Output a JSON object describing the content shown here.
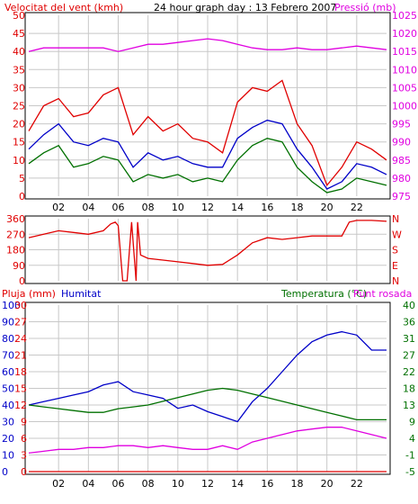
{
  "header": {
    "left_label": "Velocitat del vent (kmh)",
    "center_label": "24 hour graph day : 13 Febrero 2007",
    "right_label": "Pressió (mb)"
  },
  "colors": {
    "red": "#e00000",
    "blue": "#0000c8",
    "green": "#007000",
    "magenta": "#e000e0",
    "grid": "#c8c8c8",
    "border": "#000000"
  },
  "chart_data": [
    {
      "name": "wind-pressure",
      "type": "line",
      "x_ticks": [
        "02",
        "04",
        "06",
        "08",
        "10",
        "12",
        "14",
        "16",
        "18",
        "20",
        "22"
      ],
      "xlim": [
        0,
        24
      ],
      "ylim_left": [
        0,
        50
      ],
      "y_ticks_left": [
        "0",
        "5",
        "10",
        "15",
        "20",
        "25",
        "30",
        "35",
        "40",
        "45",
        "50"
      ],
      "ylabel_left": "Velocitat del vent (kmh)",
      "ylim_right": [
        975,
        1025
      ],
      "y_ticks_right": [
        "975",
        "980",
        "985",
        "990",
        "995",
        "1000",
        "1005",
        "1010",
        "1015",
        "1020",
        "1025"
      ],
      "ylabel_right": "Pressió (mb)",
      "series": [
        {
          "name": "Pressió (mb)",
          "color": "#e000e0",
          "axis": "right",
          "x": [
            0,
            1,
            2,
            3,
            4,
            5,
            6,
            7,
            8,
            9,
            10,
            11,
            12,
            13,
            14,
            15,
            16,
            17,
            18,
            19,
            20,
            21,
            22,
            23,
            24
          ],
          "y": [
            1015,
            1016,
            1016,
            1016,
            1016,
            1016,
            1015,
            1016,
            1017,
            1017,
            1017.5,
            1018,
            1018.5,
            1018,
            1017,
            1016,
            1015.5,
            1015.5,
            1016,
            1015.5,
            1015.5,
            1016,
            1016.5,
            1016,
            1015.5
          ]
        },
        {
          "name": "wind-gust",
          "color": "#e00000",
          "axis": "left",
          "x": [
            0,
            1,
            2,
            3,
            4,
            5,
            6,
            7,
            8,
            9,
            10,
            11,
            12,
            13,
            14,
            15,
            16,
            17,
            18,
            19,
            20,
            21,
            22,
            23,
            24
          ],
          "y": [
            18,
            25,
            27,
            22,
            23,
            28,
            30,
            17,
            22,
            18,
            20,
            16,
            15,
            12,
            26,
            30,
            29,
            32,
            20,
            14,
            3,
            8,
            15,
            13,
            10
          ]
        },
        {
          "name": "wind-average",
          "color": "#0000c8",
          "axis": "left",
          "x": [
            0,
            1,
            2,
            3,
            4,
            5,
            6,
            7,
            8,
            9,
            10,
            11,
            12,
            13,
            14,
            15,
            16,
            17,
            18,
            19,
            20,
            21,
            22,
            23,
            24
          ],
          "y": [
            13,
            17,
            20,
            15,
            14,
            16,
            15,
            8,
            12,
            10,
            11,
            9,
            8,
            8,
            16,
            19,
            21,
            20,
            13,
            8,
            2,
            4,
            9,
            8,
            6
          ]
        },
        {
          "name": "wind-low",
          "color": "#007000",
          "axis": "left",
          "x": [
            0,
            1,
            2,
            3,
            4,
            5,
            6,
            7,
            8,
            9,
            10,
            11,
            12,
            13,
            14,
            15,
            16,
            17,
            18,
            19,
            20,
            21,
            22,
            23,
            24
          ],
          "y": [
            9,
            12,
            14,
            8,
            9,
            11,
            10,
            4,
            6,
            5,
            6,
            4,
            5,
            4,
            10,
            14,
            16,
            15,
            8,
            4,
            1,
            2,
            5,
            4,
            3
          ]
        }
      ]
    },
    {
      "name": "wind-direction",
      "type": "line",
      "x_ticks": [
        "02",
        "04",
        "06",
        "08",
        "10",
        "12",
        "14",
        "16",
        "18",
        "20",
        "22"
      ],
      "xlim": [
        0,
        24
      ],
      "ylim_left": [
        0,
        360
      ],
      "y_ticks_left": [
        "0",
        "90",
        "180",
        "270",
        "360"
      ],
      "y_ticks_right": [
        "N",
        "E",
        "S",
        "W",
        "N"
      ],
      "series": [
        {
          "name": "direction",
          "color": "#e00000",
          "axis": "left",
          "x": [
            0,
            1,
            2,
            3,
            4,
            5,
            5.5,
            5.8,
            6.0,
            6.3,
            6.6,
            6.9,
            7.2,
            7.3,
            7.5,
            8,
            9,
            10,
            11,
            12,
            13,
            14,
            15,
            16,
            17,
            18,
            19,
            20,
            21,
            21.5,
            22,
            23,
            24
          ],
          "y": [
            250,
            270,
            290,
            280,
            270,
            290,
            330,
            340,
            320,
            0,
            0,
            340,
            0,
            340,
            150,
            130,
            120,
            110,
            100,
            90,
            95,
            150,
            220,
            250,
            240,
            250,
            260,
            260,
            260,
            340,
            350,
            350,
            345
          ]
        }
      ]
    },
    {
      "name": "rain-humidity-temperature",
      "type": "line",
      "x_ticks": [
        "02",
        "04",
        "06",
        "08",
        "10",
        "12",
        "14",
        "16",
        "18",
        "20",
        "22"
      ],
      "xlim": [
        0,
        24
      ],
      "ylabel_rain": "Pluja (mm)",
      "ylabel_humidity": "Humitat",
      "ylabel_temperature": "Temperatura (°C)",
      "ylabel_dewpoint": "Punt rosada",
      "y_ticks_humidity": [
        "0",
        "10",
        "20",
        "30",
        "40",
        "50",
        "60",
        "70",
        "80",
        "90",
        "100"
      ],
      "y_ticks_rain": [
        "0",
        "3",
        "6",
        "9",
        "12",
        "15",
        "18",
        "21",
        "24",
        "27",
        "30"
      ],
      "y_ticks_temp": [
        "-5",
        "-1",
        "4",
        "9",
        "13",
        "18",
        "22",
        "27",
        "31",
        "36",
        "40"
      ],
      "ylim_humidity": [
        0,
        100
      ],
      "ylim_temp": [
        -5,
        40
      ],
      "series": [
        {
          "name": "Humitat",
          "color": "#0000c8",
          "axis": "humidity",
          "x": [
            0,
            1,
            2,
            3,
            4,
            5,
            6,
            7,
            8,
            9,
            10,
            11,
            12,
            13,
            14,
            15,
            16,
            17,
            18,
            19,
            20,
            21,
            22,
            23,
            24
          ],
          "y": [
            40,
            42,
            44,
            46,
            48,
            52,
            54,
            48,
            46,
            44,
            38,
            40,
            36,
            33,
            30,
            42,
            50,
            60,
            70,
            78,
            82,
            84,
            82,
            73,
            73
          ]
        },
        {
          "name": "Temperatura (°C)",
          "color": "#007000",
          "axis": "temp",
          "x": [
            0,
            1,
            2,
            3,
            4,
            5,
            6,
            7,
            8,
            9,
            10,
            11,
            12,
            13,
            14,
            15,
            16,
            17,
            18,
            19,
            20,
            21,
            22,
            23,
            24
          ],
          "y": [
            13,
            12.5,
            12,
            11.5,
            11,
            11,
            12,
            12.5,
            13,
            14,
            15,
            16,
            17,
            17.5,
            17,
            16,
            15,
            14,
            13,
            12,
            11,
            10,
            9,
            9,
            9
          ]
        },
        {
          "name": "Punt rosada",
          "color": "#e000e0",
          "axis": "temp",
          "x": [
            0,
            1,
            2,
            3,
            4,
            5,
            6,
            7,
            8,
            9,
            10,
            11,
            12,
            13,
            14,
            15,
            16,
            17,
            18,
            19,
            20,
            21,
            22,
            23,
            24
          ],
          "y": [
            0,
            0.5,
            1,
            1,
            1.5,
            1.5,
            2,
            2,
            1.5,
            2,
            1.5,
            1,
            1,
            2,
            1,
            3,
            4,
            5,
            6,
            6.5,
            7,
            7,
            6,
            5,
            4
          ]
        },
        {
          "name": "Pluja (mm)",
          "color": "#e00000",
          "axis": "rain",
          "x": [
            0,
            24
          ],
          "y": [
            0,
            0
          ]
        }
      ]
    }
  ]
}
